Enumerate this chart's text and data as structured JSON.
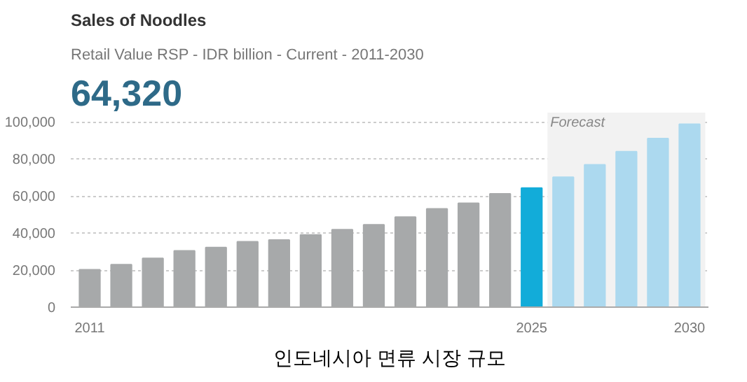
{
  "chart_data": {
    "type": "bar",
    "title": "Sales of Noodles",
    "subtitle": "Retail Value RSP - IDR billion - Current - 2011-2030",
    "annotations": [
      "64,320",
      "인도네시아 면류 시장 규모"
    ],
    "x": [
      2011,
      2012,
      2013,
      2014,
      2015,
      2016,
      2017,
      2018,
      2019,
      2020,
      2021,
      2022,
      2023,
      2024,
      2025,
      2026,
      2027,
      2028,
      2029,
      2030
    ],
    "values": [
      20200,
      22900,
      26300,
      30400,
      32200,
      35300,
      36300,
      39000,
      41800,
      44500,
      48600,
      53100,
      56100,
      61200,
      64320,
      70200,
      76900,
      83900,
      91000,
      98800
    ],
    "colors": [
      "#a7a9aa",
      "#a7a9aa",
      "#a7a9aa",
      "#a7a9aa",
      "#a7a9aa",
      "#a7a9aa",
      "#a7a9aa",
      "#a7a9aa",
      "#a7a9aa",
      "#a7a9aa",
      "#a7a9aa",
      "#a7a9aa",
      "#a7a9aa",
      "#a7a9aa",
      "#12acd9",
      "#acd9ef",
      "#acd9ef",
      "#acd9ef",
      "#acd9ef",
      "#acd9ef"
    ],
    "xlim": [
      2010.4,
      2030.6
    ],
    "xticks": [
      2011,
      2025,
      2030
    ],
    "ylim": [
      0,
      105000
    ],
    "yticks": [
      {
        "value": 0,
        "label": "0"
      },
      {
        "value": 20000,
        "label": "20,000"
      },
      {
        "value": 40000,
        "label": "40,000"
      },
      {
        "value": 60000,
        "label": "60,000"
      },
      {
        "value": 80000,
        "label": "80,000"
      },
      {
        "value": 100000,
        "label": "100,000"
      }
    ],
    "bands": [
      {
        "axis": "x",
        "from": 2025.5,
        "to": 2030.5,
        "label": "Forecast",
        "color": "#f2f2f2"
      }
    ],
    "grid": "y"
  }
}
